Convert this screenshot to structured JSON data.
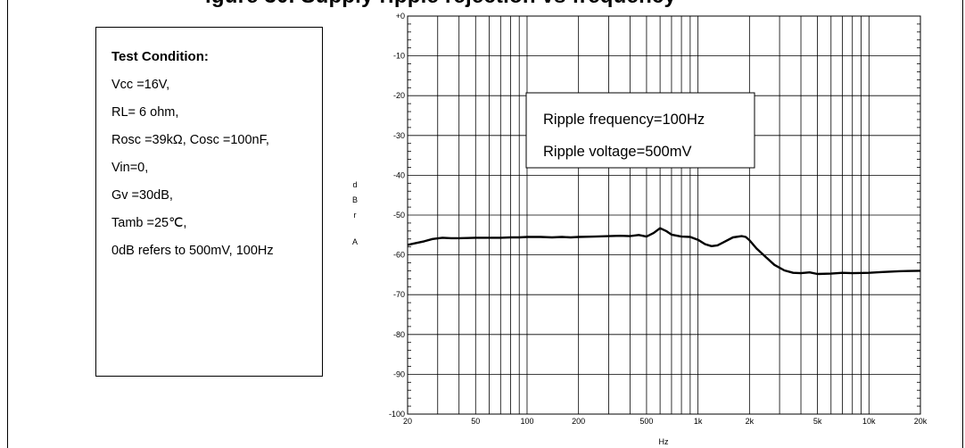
{
  "figure": {
    "title_partial": "igure 30. Supply ripple rejection vs frequency"
  },
  "test_condition": {
    "title": "Test Condition:",
    "lines": [
      "Vcc =16V,",
      "RL= 6 ohm,",
      "Rosc =39kΩ, Cosc =100nF,",
      "Vin=0,",
      "Gv =30dB,",
      "Tamb =25℃,",
      "0dB refers to 500mV, 100Hz"
    ]
  },
  "chart_data": {
    "type": "line",
    "xlabel": "Hz",
    "ylabel": "dBrA",
    "xscale": "log",
    "xlim": [
      20,
      20000
    ],
    "ylim": [
      -100,
      0
    ],
    "grid": true,
    "x_tick_labels": [
      {
        "value": 20,
        "label": "20"
      },
      {
        "value": 50,
        "label": "50"
      },
      {
        "value": 100,
        "label": "100"
      },
      {
        "value": 200,
        "label": "200"
      },
      {
        "value": 500,
        "label": "500"
      },
      {
        "value": 1000,
        "label": "1k"
      },
      {
        "value": 2000,
        "label": "2k"
      },
      {
        "value": 5000,
        "label": "5k"
      },
      {
        "value": 10000,
        "label": "10k"
      },
      {
        "value": 20000,
        "label": "20k"
      }
    ],
    "y_tick_labels": [
      {
        "value": 0,
        "label": "+0"
      },
      {
        "value": -10,
        "label": "-10"
      },
      {
        "value": -20,
        "label": "-20"
      },
      {
        "value": -30,
        "label": "-30"
      },
      {
        "value": -40,
        "label": "-40"
      },
      {
        "value": -50,
        "label": "-50"
      },
      {
        "value": -60,
        "label": "-60"
      },
      {
        "value": -70,
        "label": "-70"
      },
      {
        "value": -80,
        "label": "-80"
      },
      {
        "value": -90,
        "label": "-90"
      },
      {
        "value": -100,
        "label": "-100"
      }
    ],
    "annotation": [
      "Ripple frequency=100Hz",
      "Ripple voltage=500mV"
    ],
    "series": [
      {
        "x": [
          20,
          22,
          25,
          28,
          32,
          36,
          40,
          50,
          60,
          70,
          80,
          90,
          100,
          120,
          140,
          160,
          180,
          200,
          250,
          300,
          350,
          400,
          450,
          500,
          550,
          600,
          650,
          700,
          800,
          900,
          1000,
          1100,
          1200,
          1300,
          1400,
          1600,
          1800,
          1900,
          2000,
          2200,
          2500,
          2800,
          3200,
          3600,
          4000,
          4500,
          5000,
          6000,
          7000,
          8000,
          10000,
          12000,
          15000,
          20000
        ],
        "y": [
          -57.5,
          -57.1,
          -56.6,
          -56.0,
          -55.7,
          -55.8,
          -55.8,
          -55.7,
          -55.7,
          -55.7,
          -55.6,
          -55.6,
          -55.5,
          -55.5,
          -55.6,
          -55.5,
          -55.6,
          -55.5,
          -55.4,
          -55.3,
          -55.2,
          -55.3,
          -55.0,
          -55.4,
          -54.5,
          -53.3,
          -54.0,
          -54.9,
          -55.4,
          -55.5,
          -56.2,
          -57.3,
          -57.8,
          -57.6,
          -56.9,
          -55.6,
          -55.3,
          -55.5,
          -56.3,
          -58.4,
          -60.6,
          -62.5,
          -63.9,
          -64.5,
          -64.6,
          -64.4,
          -64.8,
          -64.7,
          -64.5,
          -64.6,
          -64.5,
          -64.3,
          -64.1,
          -64.0
        ]
      }
    ]
  }
}
